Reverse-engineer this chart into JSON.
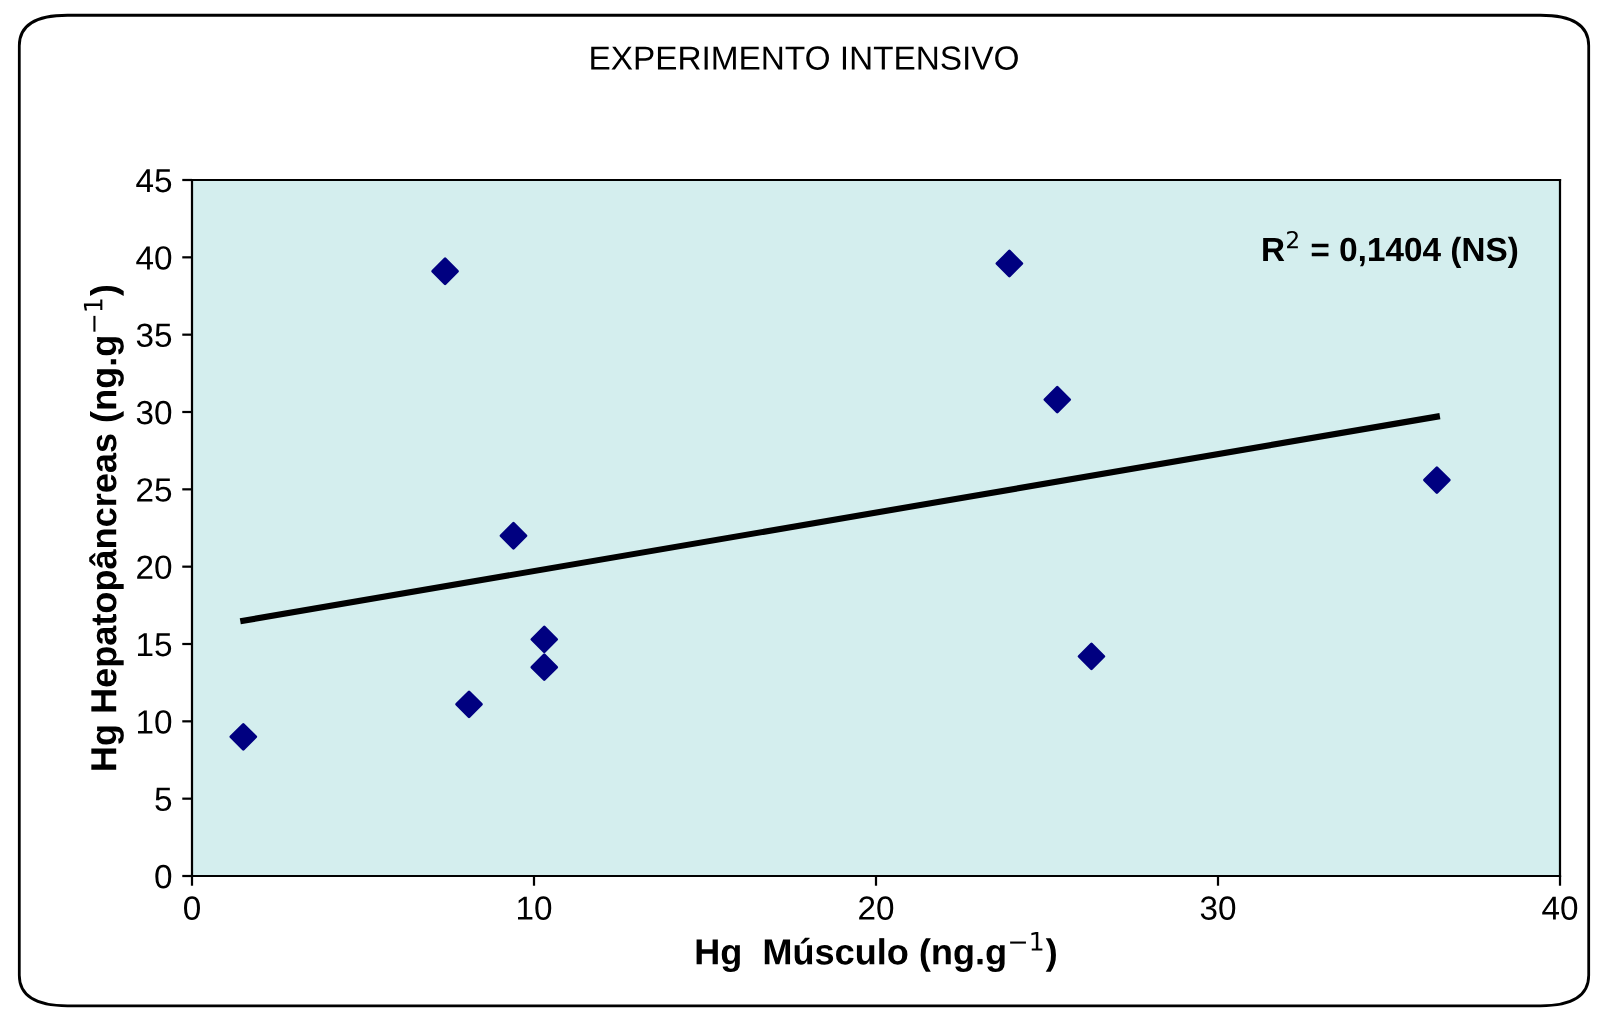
{
  "chart_data": {
    "type": "scatter",
    "title": "EXPERIMENTO INTENSIVO",
    "xlabel": "Hg  Músculo (ng.g$^{−1}$)",
    "ylabel": "Hg Hepatopâncreas (ng.g$^{−1}$)",
    "annotations": [
      "R$^{2}$ = 0,1404 (NS)"
    ],
    "series": [
      {
        "color": "#000080",
        "marker": "diamond",
        "x": [
          1.5,
          7.4,
          8.1,
          9.4,
          10.3,
          10.3,
          23.9,
          25.3,
          26.3,
          36.4
        ],
        "values": [
          9.0,
          39.1,
          11.1,
          22.0,
          15.3,
          13.5,
          39.6,
          30.8,
          14.2,
          25.6
        ]
      },
      {
        "type": "line",
        "color": "#000000",
        "marker": "none",
        "x": [
          1.5,
          36.4
        ],
        "values": [
          16.5,
          29.7
        ]
      }
    ],
    "xlim": [
      0,
      40
    ],
    "xticks": [
      0,
      10,
      20,
      30,
      40
    ],
    "ylim": [
      0,
      45
    ],
    "yticks": [
      0,
      5,
      10,
      15,
      20,
      25,
      30,
      35,
      40,
      45
    ],
    "grid": false,
    "legend": false
  }
}
